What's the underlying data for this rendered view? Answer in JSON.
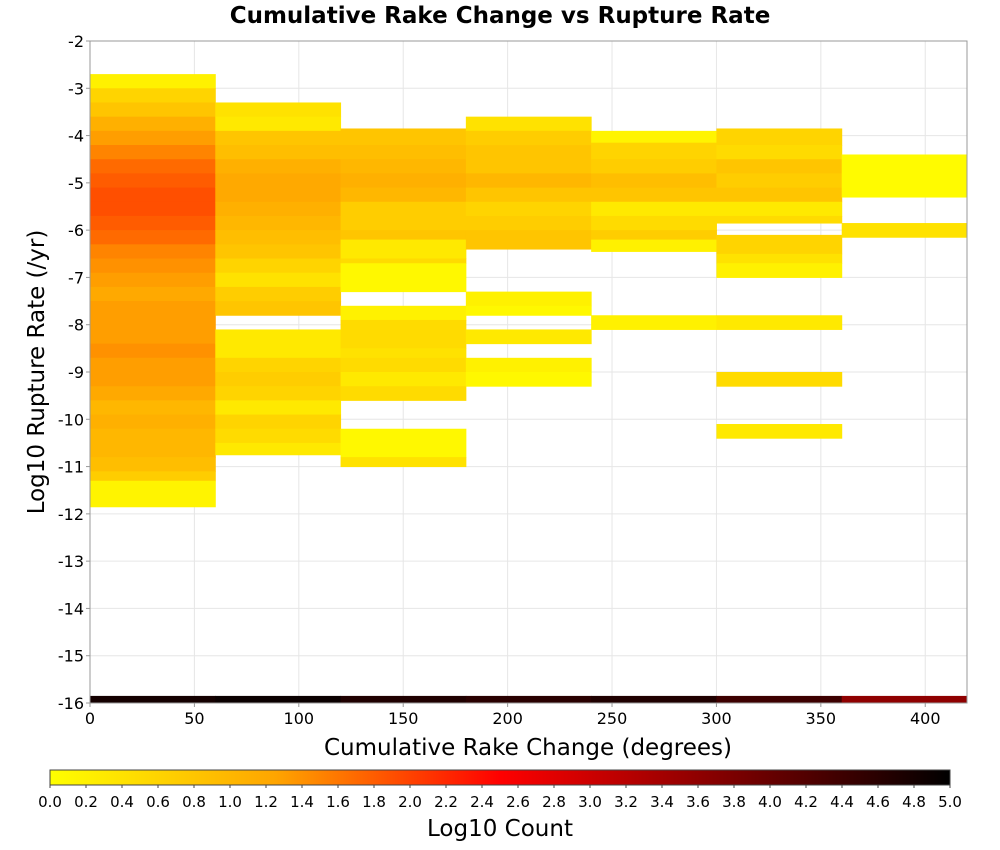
{
  "chart_data": {
    "type": "heatmap",
    "title": "Cumulative Rake Change vs Rupture Rate",
    "xlabel": "Cumulative Rake Change (degrees)",
    "ylabel": "Log10 Rupture Rate (/yr)",
    "xlim": [
      0,
      420
    ],
    "ylim": [
      -16,
      -2
    ],
    "x_ticks": [
      "0",
      "50",
      "100",
      "150",
      "200",
      "250",
      "300",
      "350",
      "400"
    ],
    "y_ticks": [
      "-2",
      "-3",
      "-4",
      "-5",
      "-6",
      "-7",
      "-8",
      "-9",
      "-10",
      "-11",
      "-12",
      "-13",
      "-14",
      "-15",
      "-16"
    ],
    "x_bin_width": 60,
    "y_bin_height": 0.3,
    "grid": true,
    "colorbar": {
      "label": "Log10 Count",
      "min": 0.0,
      "max": 5.0,
      "ticks": [
        "0.0",
        "0.2",
        "0.4",
        "0.6",
        "0.8",
        "1.0",
        "1.2",
        "1.4",
        "1.6",
        "1.8",
        "2.0",
        "2.2",
        "2.4",
        "2.6",
        "2.8",
        "3.0",
        "3.2",
        "3.4",
        "3.6",
        "3.8",
        "4.0",
        "4.2",
        "4.4",
        "4.6",
        "4.8",
        "5.0"
      ],
      "stops": [
        "#ffff00",
        "#ffa500",
        "#ff0000",
        "#800000",
        "#000000"
      ]
    },
    "columns": [
      {
        "x_start": 0,
        "bins": [
          {
            "y_from": -3.0,
            "y_to": -2.7,
            "value": 0.2
          },
          {
            "y_from": -3.3,
            "y_to": -3.0,
            "value": 0.6
          },
          {
            "y_from": -3.6,
            "y_to": -3.3,
            "value": 0.8
          },
          {
            "y_from": -3.9,
            "y_to": -3.6,
            "value": 1.1
          },
          {
            "y_from": -4.2,
            "y_to": -3.9,
            "value": 1.3
          },
          {
            "y_from": -4.5,
            "y_to": -4.2,
            "value": 1.5
          },
          {
            "y_from": -4.8,
            "y_to": -4.5,
            "value": 1.7
          },
          {
            "y_from": -5.1,
            "y_to": -4.8,
            "value": 1.8
          },
          {
            "y_from": -5.4,
            "y_to": -5.1,
            "value": 1.9
          },
          {
            "y_from": -5.7,
            "y_to": -5.4,
            "value": 1.9
          },
          {
            "y_from": -6.0,
            "y_to": -5.7,
            "value": 1.8
          },
          {
            "y_from": -6.3,
            "y_to": -6.0,
            "value": 1.7
          },
          {
            "y_from": -6.6,
            "y_to": -6.3,
            "value": 1.5
          },
          {
            "y_from": -6.9,
            "y_to": -6.6,
            "value": 1.4
          },
          {
            "y_from": -7.2,
            "y_to": -6.9,
            "value": 1.3
          },
          {
            "y_from": -7.5,
            "y_to": -7.2,
            "value": 1.2
          },
          {
            "y_from": -7.8,
            "y_to": -7.5,
            "value": 1.3
          },
          {
            "y_from": -8.1,
            "y_to": -7.8,
            "value": 1.3
          },
          {
            "y_from": -8.4,
            "y_to": -8.1,
            "value": 1.3
          },
          {
            "y_from": -8.7,
            "y_to": -8.4,
            "value": 1.4
          },
          {
            "y_from": -9.0,
            "y_to": -8.7,
            "value": 1.3
          },
          {
            "y_from": -9.3,
            "y_to": -9.0,
            "value": 1.3
          },
          {
            "y_from": -9.6,
            "y_to": -9.3,
            "value": 1.2
          },
          {
            "y_from": -9.9,
            "y_to": -9.6,
            "value": 1.0
          },
          {
            "y_from": -10.2,
            "y_to": -9.9,
            "value": 1.1
          },
          {
            "y_from": -10.5,
            "y_to": -10.2,
            "value": 1.0
          },
          {
            "y_from": -10.8,
            "y_to": -10.5,
            "value": 1.0
          },
          {
            "y_from": -11.1,
            "y_to": -10.8,
            "value": 0.9
          },
          {
            "y_from": -11.3,
            "y_to": -11.1,
            "value": 0.7
          },
          {
            "y_from": -11.85,
            "y_to": -11.3,
            "value": 0.15
          }
        ]
      },
      {
        "x_start": 60,
        "bins": [
          {
            "y_from": -3.6,
            "y_to": -3.3,
            "value": 0.4
          },
          {
            "y_from": -3.9,
            "y_to": -3.6,
            "value": 0.3
          },
          {
            "y_from": -4.2,
            "y_to": -3.9,
            "value": 0.8
          },
          {
            "y_from": -4.5,
            "y_to": -4.2,
            "value": 0.9
          },
          {
            "y_from": -4.8,
            "y_to": -4.5,
            "value": 1.1
          },
          {
            "y_from": -5.1,
            "y_to": -4.8,
            "value": 1.2
          },
          {
            "y_from": -5.4,
            "y_to": -5.1,
            "value": 1.2
          },
          {
            "y_from": -5.7,
            "y_to": -5.4,
            "value": 1.1
          },
          {
            "y_from": -6.0,
            "y_to": -5.7,
            "value": 1.0
          },
          {
            "y_from": -6.3,
            "y_to": -6.0,
            "value": 0.9
          },
          {
            "y_from": -6.6,
            "y_to": -6.3,
            "value": 0.8
          },
          {
            "y_from": -6.9,
            "y_to": -6.6,
            "value": 0.6
          },
          {
            "y_from": -7.2,
            "y_to": -6.9,
            "value": 0.4
          },
          {
            "y_from": -7.5,
            "y_to": -7.2,
            "value": 0.7
          },
          {
            "y_from": -7.8,
            "y_to": -7.5,
            "value": 0.8
          },
          {
            "y_from": -8.4,
            "y_to": -8.1,
            "value": 0.3
          },
          {
            "y_from": -8.7,
            "y_to": -8.4,
            "value": 0.3
          },
          {
            "y_from": -9.0,
            "y_to": -8.7,
            "value": 0.6
          },
          {
            "y_from": -9.3,
            "y_to": -9.0,
            "value": 0.7
          },
          {
            "y_from": -9.6,
            "y_to": -9.3,
            "value": 0.6
          },
          {
            "y_from": -9.9,
            "y_to": -9.6,
            "value": 0.3
          },
          {
            "y_from": -10.2,
            "y_to": -9.9,
            "value": 0.6
          },
          {
            "y_from": -10.5,
            "y_to": -10.2,
            "value": 0.5
          },
          {
            "y_from": -10.75,
            "y_to": -10.5,
            "value": 0.3
          }
        ]
      },
      {
        "x_start": 120,
        "bins": [
          {
            "y_from": -4.2,
            "y_to": -3.85,
            "value": 0.8
          },
          {
            "y_from": -4.5,
            "y_to": -4.2,
            "value": 0.9
          },
          {
            "y_from": -4.8,
            "y_to": -4.5,
            "value": 1.0
          },
          {
            "y_from": -5.1,
            "y_to": -4.8,
            "value": 1.1
          },
          {
            "y_from": -5.4,
            "y_to": -5.1,
            "value": 1.0
          },
          {
            "y_from": -5.7,
            "y_to": -5.4,
            "value": 0.7
          },
          {
            "y_from": -6.0,
            "y_to": -5.7,
            "value": 0.7
          },
          {
            "y_from": -6.2,
            "y_to": -6.0,
            "value": 0.8
          },
          {
            "y_from": -6.6,
            "y_to": -6.2,
            "value": 0.3
          },
          {
            "y_from": -6.7,
            "y_to": -6.6,
            "value": 0.5
          },
          {
            "y_from": -7.0,
            "y_to": -6.7,
            "value": 0.1
          },
          {
            "y_from": -7.3,
            "y_to": -7.0,
            "value": 0.1
          },
          {
            "y_from": -7.9,
            "y_to": -7.6,
            "value": 0.2
          },
          {
            "y_from": -8.5,
            "y_to": -7.9,
            "value": 0.5
          },
          {
            "y_from": -8.7,
            "y_to": -8.5,
            "value": 0.4
          },
          {
            "y_from": -9.0,
            "y_to": -8.7,
            "value": 0.5
          },
          {
            "y_from": -9.3,
            "y_to": -9.0,
            "value": 0.3
          },
          {
            "y_from": -9.6,
            "y_to": -9.3,
            "value": 0.5
          },
          {
            "y_from": -10.8,
            "y_to": -10.2,
            "value": 0.1
          },
          {
            "y_from": -11.0,
            "y_to": -10.8,
            "value": 0.4
          }
        ]
      },
      {
        "x_start": 180,
        "bins": [
          {
            "y_from": -3.9,
            "y_to": -3.6,
            "value": 0.4
          },
          {
            "y_from": -4.2,
            "y_to": -3.9,
            "value": 0.7
          },
          {
            "y_from": -4.8,
            "y_to": -4.2,
            "value": 0.8
          },
          {
            "y_from": -5.1,
            "y_to": -4.8,
            "value": 1.0
          },
          {
            "y_from": -5.4,
            "y_to": -5.1,
            "value": 0.8
          },
          {
            "y_from": -5.7,
            "y_to": -5.4,
            "value": 0.6
          },
          {
            "y_from": -6.0,
            "y_to": -5.7,
            "value": 0.7
          },
          {
            "y_from": -6.4,
            "y_to": -6.0,
            "value": 0.8
          },
          {
            "y_from": -7.6,
            "y_to": -7.3,
            "value": 0.2
          },
          {
            "y_from": -7.8,
            "y_to": -7.6,
            "value": 0.1
          },
          {
            "y_from": -8.4,
            "y_to": -8.1,
            "value": 0.3
          },
          {
            "y_from": -9.0,
            "y_to": -8.7,
            "value": 0.2
          },
          {
            "y_from": -9.3,
            "y_to": -9.0,
            "value": 0.1
          }
        ]
      },
      {
        "x_start": 240,
        "bins": [
          {
            "y_from": -4.15,
            "y_to": -3.9,
            "value": 0.15
          },
          {
            "y_from": -4.5,
            "y_to": -4.15,
            "value": 0.6
          },
          {
            "y_from": -4.8,
            "y_to": -4.5,
            "value": 0.7
          },
          {
            "y_from": -5.1,
            "y_to": -4.8,
            "value": 0.9
          },
          {
            "y_from": -5.4,
            "y_to": -5.1,
            "value": 0.8
          },
          {
            "y_from": -5.7,
            "y_to": -5.4,
            "value": 0.3
          },
          {
            "y_from": -6.0,
            "y_to": -5.7,
            "value": 0.5
          },
          {
            "y_from": -6.2,
            "y_to": -6.0,
            "value": 0.7
          },
          {
            "y_from": -6.45,
            "y_to": -6.2,
            "value": 0.2
          },
          {
            "y_from": -8.1,
            "y_to": -7.8,
            "value": 0.2
          }
        ]
      },
      {
        "x_start": 300,
        "bins": [
          {
            "y_from": -4.2,
            "y_to": -3.85,
            "value": 0.6
          },
          {
            "y_from": -4.5,
            "y_to": -4.2,
            "value": 0.5
          },
          {
            "y_from": -4.8,
            "y_to": -4.5,
            "value": 0.8
          },
          {
            "y_from": -5.1,
            "y_to": -4.8,
            "value": 0.7
          },
          {
            "y_from": -5.4,
            "y_to": -5.1,
            "value": 0.8
          },
          {
            "y_from": -5.7,
            "y_to": -5.4,
            "value": 0.3
          },
          {
            "y_from": -5.85,
            "y_to": -5.7,
            "value": 0.5
          },
          {
            "y_from": -6.5,
            "y_to": -6.1,
            "value": 0.6
          },
          {
            "y_from": -6.7,
            "y_to": -6.5,
            "value": 0.4
          },
          {
            "y_from": -7.0,
            "y_to": -6.7,
            "value": 0.2
          },
          {
            "y_from": -8.1,
            "y_to": -7.8,
            "value": 0.3
          },
          {
            "y_from": -9.3,
            "y_to": -9.0,
            "value": 0.5
          },
          {
            "y_from": -10.4,
            "y_to": -10.1,
            "value": 0.3
          }
        ]
      },
      {
        "x_start": 360,
        "bins": [
          {
            "y_from": -5.3,
            "y_to": -4.4,
            "value": 0.05
          },
          {
            "y_from": -6.15,
            "y_to": -5.85,
            "value": 0.4
          }
        ]
      }
    ],
    "bottom_row": {
      "y_from": -16.0,
      "y_to": -15.85,
      "values": [
        4.8,
        4.9,
        4.7,
        4.6,
        4.7,
        4.4,
        3.6
      ]
    }
  }
}
